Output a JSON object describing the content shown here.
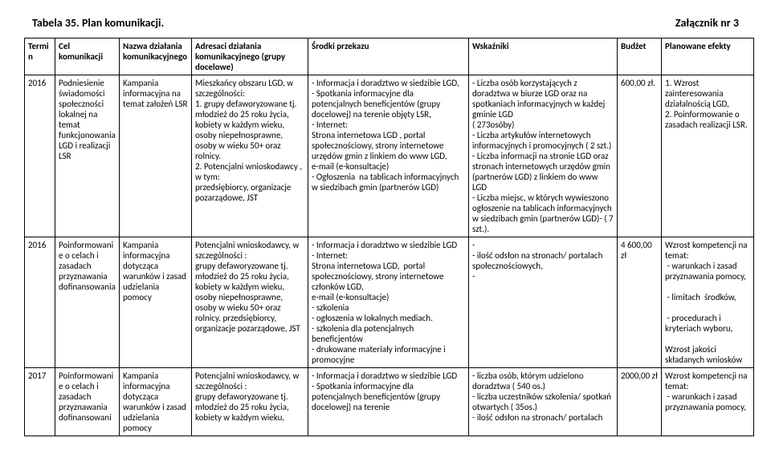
{
  "header": {
    "tableTitle": "Tabela 35. Plan komunikacji.",
    "attachment": "Załącznik nr 3"
  },
  "columns": {
    "c1": "Termin",
    "c2": "Cel komunikacji",
    "c3": "Nazwa działania komunikacyjnego",
    "c4": "Adresaci działania komunikacyjnego (grupy docelowe)",
    "c5": "Środki przekazu",
    "c6": "Wskaźniki",
    "c7": "Budżet",
    "c8": "Planowane efekty"
  },
  "rows": [
    {
      "termin": "2016",
      "cel": "Podniesienie świadomości społeczności lokalnej na temat funkcjonowania LGD i realizacji LSR",
      "nazwa": "Kampania informacyjna na temat założeń LSR",
      "adresaci": "Mieszkańcy obszaru LGD, w szczególności:\n1. grupy defaworyzowane tj. młodzież do 25 roku życia, kobiety w każdym wieku, osoby niepełnosprawne, osoby w wieku 50+ oraz rolnicy.\n2. Potencjalni wnioskodawcy , w tym:\nprzedsiębiorcy, organizacje pozarządowe, JST",
      "srodki": "- Informacja i doradztwo w siedzibie LGD,\n- Spotkania informacyjne dla potencjalnych beneficjentów (grupy docelowej) na terenie objęty LSR,\n- Internet:\nStrona internetowa LGD , portal społecznościowy, strony internetowe urzędów gmin z linkiem do www LGD,\ne-mail (e-konsultacje)\n- Ogłoszenia  na tablicach informacyjnych w siedzibach gmin (partnerów LGD)",
      "wskazniki": "- Liczba osób korzystających z doradztwa w biurze LGD oraz na spotkaniach informacyjnych w każdej gminie LGD\n( 273osóby)\n- Liczba artykułów internetowych informacyjnych i promocyjnych ( 2 szt.)\n- Liczba informacji na stronie LGD oraz stronach internetowych urzędów gmin (partnerów LGD) z linkiem do www LGD\n- Liczba miejsc, w których wywieszono ogłoszenie na tablicach informacyjnych w siedzibach gmin (partnerów LGD)- ( 7 szt.).",
      "budzet": "600,00 zł.",
      "efekty": "1. Wzrost zainteresowania działalnością LGD,\n2. Poinformowanie o zasadach realizacji LSR."
    },
    {
      "termin": "2016",
      "cel": "Poinformowanie o celach i zasadach przyznawania dofinansowania",
      "nazwa": "Kampania informacyjna dotycząca warunków i zasad udzielania pomocy",
      "adresaci": "Potencjalni wnioskodawcy, w szczególności :\ngrupy defaworyzowane tj. młodzież do 25 roku życia, kobiety w każdym wieku, osoby niepełnosprawne, osoby w wieku 50+ oraz rolnicy. przedsiębiorcy, organizacje pozarządowe, JST",
      "srodki": "- Informacja i doradztwo w siedzibie LGD\n- Internet:\nStrona internetowa LGD,  portal społecznościowy, strony internetowe członków LGD,\ne-mail (e-konsultacje)\n- szkolenia\n- ogłoszenia w lokalnych mediach.\n- szkolenia dla potencjalnych beneficjentów\n- drukowane materiały informacyjne i promocyjne",
      "wskazniki": "-\n- ilość odsłon na stronach/ portalach społecznościowych,\n-",
      "budzet": "4 600,00 zł",
      "efekty": "Wzrost kompetencji na temat:\n - warunkach i zasad przyznawania pomocy,\n\n - limitach  środków,\n\n - procedurach i kryteriach wyboru,\n\nWzrost jakości składanych wniosków"
    },
    {
      "termin": "2017",
      "cel": "Poinformowanie o celach i zasadach przyznawania dofinansowani",
      "nazwa": "Kampania informacyjna dotycząca warunków i zasad udzielania pomocy",
      "adresaci": "Potencjalni wnioskodawcy, w szczególności :\ngrupy defaworyzowane tj. młodzież do 25 roku życia, kobiety w każdym wieku,",
      "srodki": "- Informacja i doradztwo w siedzibie LGD\n- Spotkania informacyjne dla potencjalnych beneficjentów (grupy docelowej) na terenie",
      "wskazniki": "- liczba osób, którym udzielono doradztwa ( 540 os.)\n- liczba uczestników szkolenia/ spotkań otwartych ( 35os.)\n- ilość odsłon na stronach/ portalach",
      "budzet": "2000,00 zł",
      "efekty": "Wzrost kompetencji na temat:\n - warunkach i zasad przyznawania pomocy,"
    }
  ]
}
